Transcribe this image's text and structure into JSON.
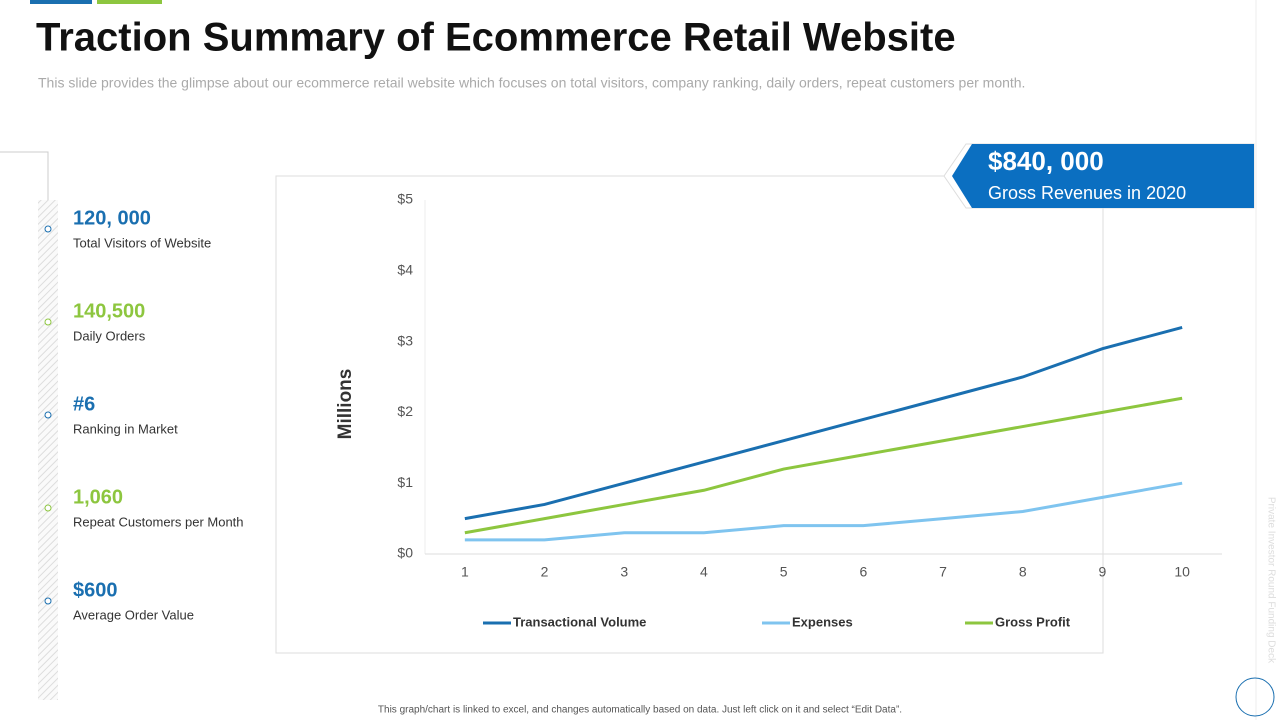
{
  "header": {
    "title": "Traction Summary of Ecommerce Retail Website",
    "subtitle": "This slide provides the glimpse about our ecommerce retail website which focuses on total visitors, company ranking, daily orders, repeat customers per month."
  },
  "kpis": [
    {
      "value": "120, 000",
      "label": "Total Visitors of Website",
      "color": "#1a6fb0"
    },
    {
      "value": "140,500",
      "label": "Daily Orders",
      "color": "#8dc63f"
    },
    {
      "value": "#6",
      "label": "Ranking in Market",
      "color": "#1a6fb0"
    },
    {
      "value": "1,060",
      "label": "Repeat Customers per Month",
      "color": "#8dc63f"
    },
    {
      "value": "$600",
      "label": "Average  Order Value",
      "color": "#1a6fb0"
    }
  ],
  "callout": {
    "value": "$840, 000",
    "label": "Gross Revenues in 2020"
  },
  "chart_data": {
    "type": "line",
    "y_label": "Millions",
    "x": [
      1,
      2,
      3,
      4,
      5,
      6,
      7,
      8,
      9,
      10
    ],
    "xlim": [
      0.5,
      10.5
    ],
    "xticks": [
      1,
      2,
      3,
      4,
      5,
      6,
      7,
      8,
      9,
      10
    ],
    "ylim": [
      0,
      5
    ],
    "yticks": [
      {
        "value": 0,
        "label": "$0"
      },
      {
        "value": 1,
        "label": "$1"
      },
      {
        "value": 2,
        "label": "$2"
      },
      {
        "value": 3,
        "label": "$3"
      },
      {
        "value": 4,
        "label": "$4"
      },
      {
        "value": 5,
        "label": "$5"
      }
    ],
    "grid": false,
    "legend": "bottom",
    "series": [
      {
        "name": "Transactional Volume",
        "color": "#1a6fb0",
        "values": [
          0.5,
          0.7,
          1.0,
          1.3,
          1.6,
          1.9,
          2.2,
          2.5,
          2.9,
          3.2
        ]
      },
      {
        "name": "Expenses",
        "color": "#7fc4ef",
        "values": [
          0.2,
          0.2,
          0.3,
          0.3,
          0.4,
          0.4,
          0.5,
          0.6,
          0.8,
          1.0
        ]
      },
      {
        "name": "Gross Profit",
        "color": "#8dc63f",
        "values": [
          0.3,
          0.5,
          0.7,
          0.9,
          1.2,
          1.4,
          1.6,
          1.8,
          2.0,
          2.2
        ]
      }
    ]
  },
  "footer": {
    "note": "This graph/chart is linked to excel, and changes automatically based on data. Just left click on it and select “Edit Data”.",
    "side": "Private Investor Round Funding Deck"
  }
}
